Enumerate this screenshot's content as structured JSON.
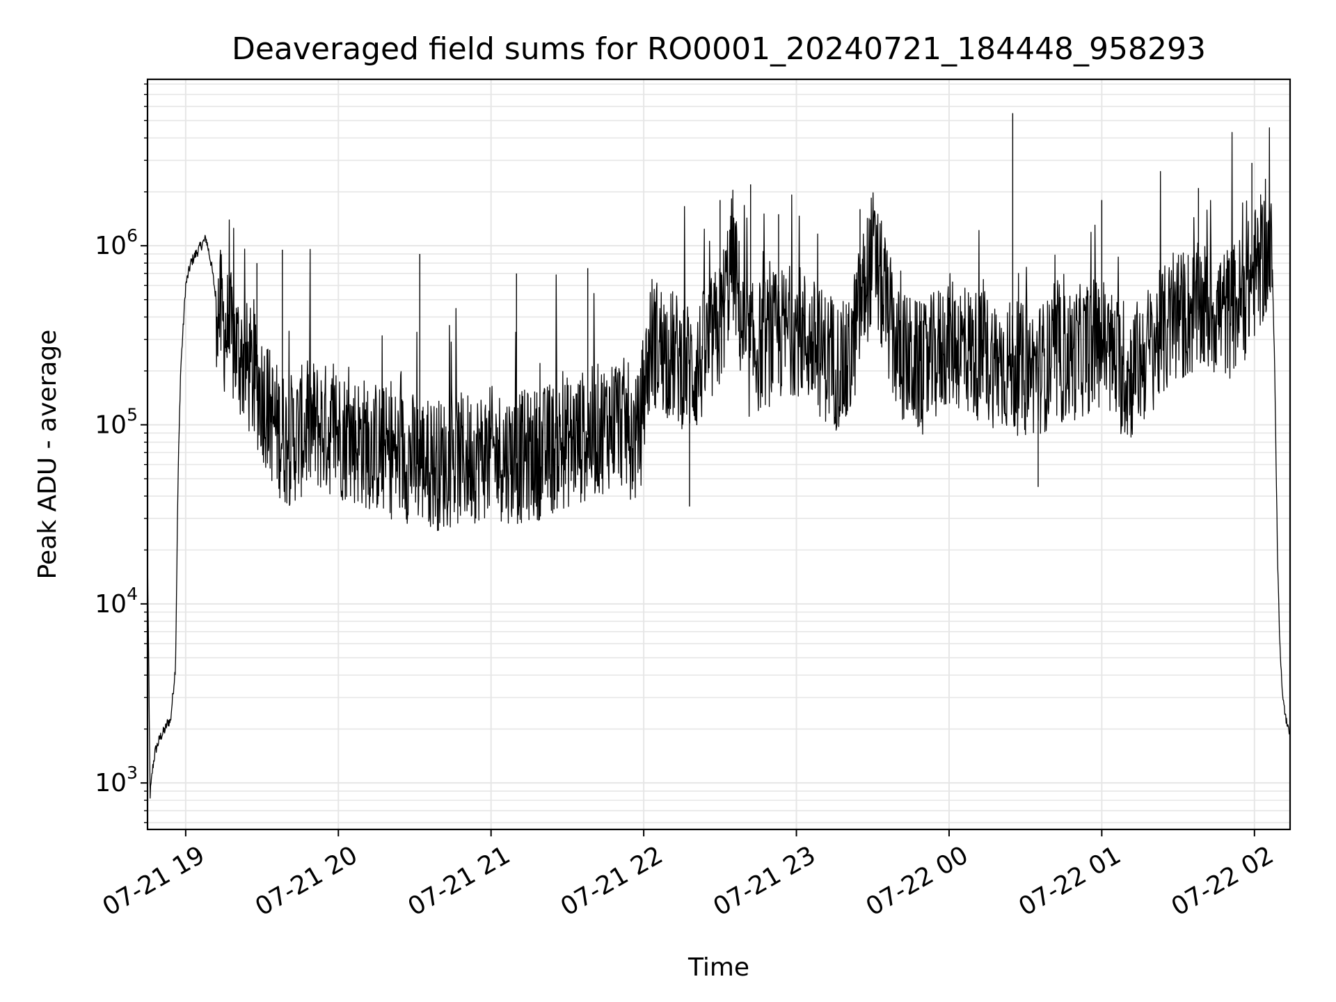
{
  "chart_data": {
    "type": "line",
    "title": "Deaveraged field sums for RO0001_20240721_184448_958293",
    "xlabel": "Time",
    "ylabel": "Peak ADU - average",
    "yscale": "log",
    "ylim": [
      550,
      8500000
    ],
    "xlim": [
      "2024-07-21 18:45",
      "2024-07-22 02:14"
    ],
    "grid": true,
    "line_color": "#000000",
    "grid_color": "#e6e6e6",
    "x_ticks": [
      {
        "t": "2024-07-21 19:00",
        "label": "07-21 19"
      },
      {
        "t": "2024-07-21 20:00",
        "label": "07-21 20"
      },
      {
        "t": "2024-07-21 21:00",
        "label": "07-21 21"
      },
      {
        "t": "2024-07-21 22:00",
        "label": "07-21 22"
      },
      {
        "t": "2024-07-21 23:00",
        "label": "07-21 23"
      },
      {
        "t": "2024-07-22 00:00",
        "label": "07-22 00"
      },
      {
        "t": "2024-07-22 01:00",
        "label": "07-22 01"
      },
      {
        "t": "2024-07-22 02:00",
        "label": "07-22 02"
      }
    ],
    "y_ticks": [
      {
        "value": 1000,
        "base": "10",
        "exp": "3"
      },
      {
        "value": 10000,
        "base": "10",
        "exp": "4"
      },
      {
        "value": 100000,
        "base": "10",
        "exp": "5"
      },
      {
        "value": 1000000,
        "base": "10",
        "exp": "6"
      }
    ],
    "series": [
      {
        "x": [
          "2024-07-21 18:45",
          "2024-07-21 18:46",
          "2024-07-21 18:47",
          "2024-07-21 18:48",
          "2024-07-21 18:50",
          "2024-07-21 18:52",
          "2024-07-21 18:53",
          "2024-07-21 18:54",
          "2024-07-21 18:56",
          "2024-07-21 18:57",
          "2024-07-21 18:58",
          "2024-07-21 19:00",
          "2024-07-21 19:02",
          "2024-07-21 19:04",
          "2024-07-21 19:06",
          "2024-07-21 19:08",
          "2024-07-21 19:10",
          "2024-07-21 19:12",
          "2024-07-21 19:15",
          "2024-07-21 19:18",
          "2024-07-21 19:21",
          "2024-07-21 19:25",
          "2024-07-21 19:30",
          "2024-07-21 19:35",
          "2024-07-21 19:40",
          "2024-07-21 19:45",
          "2024-07-21 19:50",
          "2024-07-21 20:00",
          "2024-07-21 20:10",
          "2024-07-21 20:20",
          "2024-07-21 20:30",
          "2024-07-21 20:40",
          "2024-07-21 20:50",
          "2024-07-21 21:00",
          "2024-07-21 21:10",
          "2024-07-21 21:20",
          "2024-07-21 21:30",
          "2024-07-21 21:40",
          "2024-07-21 21:50",
          "2024-07-21 21:58",
          "2024-07-21 22:00",
          "2024-07-21 22:03",
          "2024-07-21 22:10",
          "2024-07-21 22:20",
          "2024-07-21 22:30",
          "2024-07-21 22:35",
          "2024-07-21 22:40",
          "2024-07-21 22:50",
          "2024-07-21 23:00",
          "2024-07-21 23:10",
          "2024-07-21 23:20",
          "2024-07-21 23:25",
          "2024-07-21 23:30",
          "2024-07-21 23:40",
          "2024-07-21 23:50",
          "2024-07-22 00:00",
          "2024-07-22 00:10",
          "2024-07-22 00:20",
          "2024-07-22 00:30",
          "2024-07-22 00:40",
          "2024-07-22 00:50",
          "2024-07-22 01:00",
          "2024-07-22 01:10",
          "2024-07-22 01:20",
          "2024-07-22 01:30",
          "2024-07-22 01:40",
          "2024-07-22 01:50",
          "2024-07-22 01:55",
          "2024-07-22 02:00",
          "2024-07-22 02:04",
          "2024-07-22 02:07",
          "2024-07-22 02:08",
          "2024-07-22 02:09",
          "2024-07-22 02:10",
          "2024-07-22 02:11",
          "2024-07-22 02:12",
          "2024-07-22 02:13",
          "2024-07-22 02:14"
        ],
        "y": [
          20000,
          850,
          1200,
          1500,
          1800,
          2000,
          2200,
          2200,
          4500,
          50000,
          200000,
          600000,
          800000,
          900000,
          1000000,
          1100000,
          800000,
          500000,
          350000,
          300000,
          250000,
          200000,
          150000,
          100000,
          80000,
          90000,
          100000,
          90000,
          80000,
          70000,
          65000,
          60000,
          65000,
          70000,
          65000,
          70000,
          80000,
          90000,
          110000,
          80000,
          150000,
          300000,
          250000,
          200000,
          350000,
          900000,
          250000,
          300000,
          350000,
          250000,
          200000,
          450000,
          900000,
          250000,
          200000,
          300000,
          250000,
          220000,
          200000,
          220000,
          250000,
          300000,
          180000,
          280000,
          400000,
          450000,
          420000,
          500000,
          700000,
          900000,
          800000,
          200000,
          20000,
          6000,
          3000,
          2500,
          2000,
          2000
        ],
        "spikes": [
          {
            "x": "2024-07-21 19:28",
            "y": 800000
          },
          {
            "x": "2024-07-21 19:38",
            "y": 950000
          },
          {
            "x": "2024-07-21 20:32",
            "y": 900000
          },
          {
            "x": "2024-07-21 21:10",
            "y": 700000
          },
          {
            "x": "2024-07-21 21:38",
            "y": 750000
          },
          {
            "x": "2024-07-21 22:30",
            "y": 1800000
          },
          {
            "x": "2024-07-21 22:42",
            "y": 2200000
          },
          {
            "x": "2024-07-21 22:53",
            "y": 1500000
          },
          {
            "x": "2024-07-21 23:25",
            "y": 1600000
          },
          {
            "x": "2024-07-22 00:25",
            "y": 5500000
          },
          {
            "x": "2024-07-22 01:00",
            "y": 1800000
          },
          {
            "x": "2024-07-22 01:38",
            "y": 2100000
          },
          {
            "x": "2024-07-22 01:59",
            "y": 2900000
          },
          {
            "x": "2024-07-21 22:18",
            "y": 35000
          },
          {
            "x": "2024-07-22 00:35",
            "y": 45000
          }
        ]
      }
    ]
  }
}
